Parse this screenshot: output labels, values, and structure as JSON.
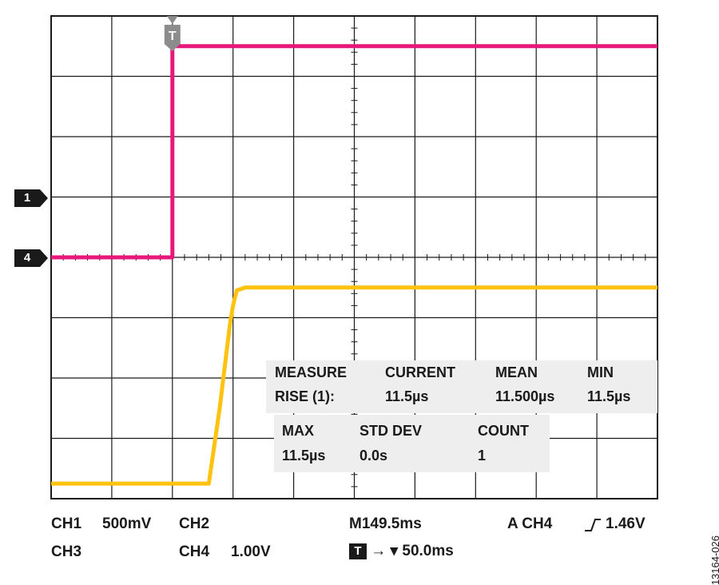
{
  "colors": {
    "ch1": "#e8187a",
    "ch4": "#ffc20e",
    "grid": "#1a1a1a",
    "trigger_marker": "#8c8c8c"
  },
  "chart_data": {
    "type": "line",
    "title": "",
    "divisions": {
      "x": 10,
      "y": 8
    },
    "series": [
      {
        "channel": "CH1",
        "color": "#e8187a",
        "points": [
          [
            0,
            4
          ],
          [
            2,
            4
          ],
          [
            2,
            7.5
          ],
          [
            10,
            7.5
          ]
        ]
      },
      {
        "channel": "CH4",
        "color": "#ffc20e",
        "points": [
          [
            0,
            0.25
          ],
          [
            2.6,
            0.25
          ],
          [
            2.78,
            1.5
          ],
          [
            2.95,
            2.9
          ],
          [
            3.0,
            3.2
          ],
          [
            3.06,
            3.45
          ],
          [
            3.2,
            3.5
          ],
          [
            10,
            3.5
          ]
        ]
      }
    ]
  },
  "markers": {
    "trigger": "T",
    "ch1_ground": "1",
    "ch4_ground": "4"
  },
  "measurements": {
    "measure_label": "MEASURE",
    "rise_label": "RISE (1):",
    "current_label": "CURRENT",
    "current_value": "11.5µs",
    "mean_label": "MEAN",
    "mean_value": "11.500µs",
    "min_label": "MIN",
    "min_value": "11.5µs",
    "max_label": "MAX",
    "max_value": "11.5µs",
    "stddev_label": "STD DEV",
    "stddev_value": "0.0s",
    "count_label": "COUNT",
    "count_value": "1"
  },
  "settings": {
    "ch1": "CH1",
    "ch1_scale": "500mV",
    "ch2": "CH2",
    "ch3": "CH3",
    "ch4": "CH4",
    "ch4_scale": "1.00V",
    "timebase": "M149.5ms",
    "trigger_source": "A  CH4",
    "trigger_level": "1.46V",
    "trigger_box": "T",
    "trigger_delay": "→ ▾ 50.0ms"
  },
  "figure_id": "13164-026"
}
